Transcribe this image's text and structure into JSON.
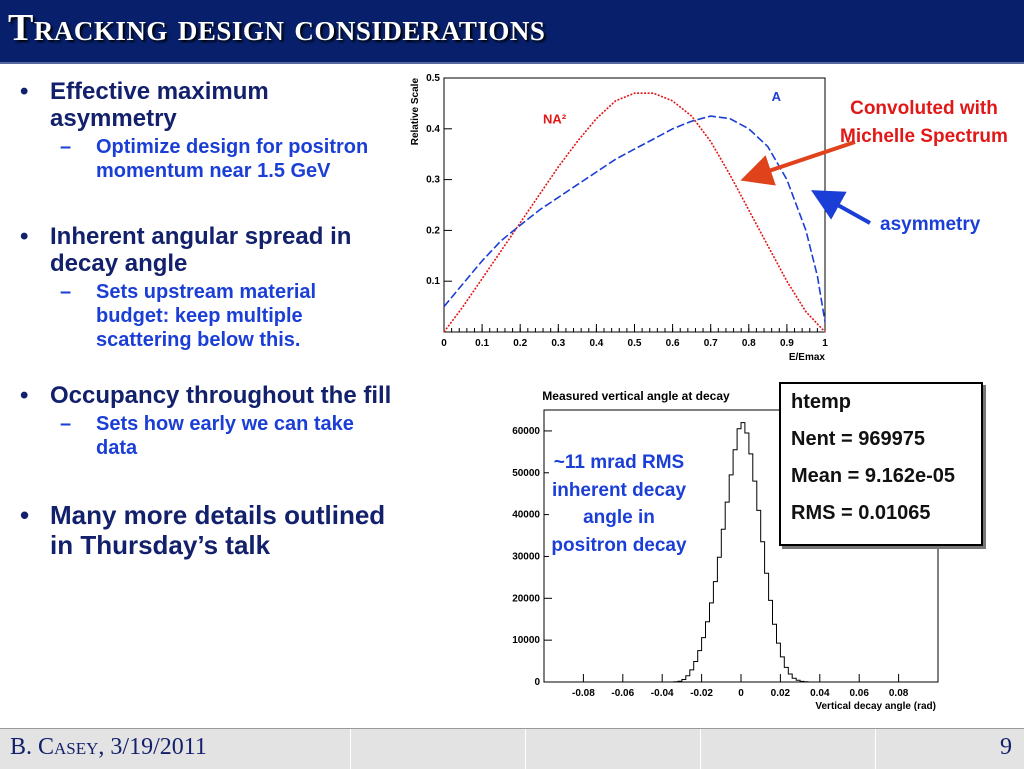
{
  "slide": {
    "title": "Tracking design considerations",
    "bullets": [
      {
        "text": "Effective maximum asymmetry",
        "sub": "Optimize design for positron momentum near 1.5 GeV"
      },
      {
        "text": "Inherent angular spread in decay angle",
        "sub": "Sets upstream material budget:  keep multiple scattering below this."
      },
      {
        "text": "Occupancy throughout the fill",
        "sub": "Sets how early we can take data"
      },
      {
        "text": "Many more details outlined in Thursday’s talk",
        "sub": ""
      }
    ],
    "bullet_symbol": "•",
    "sub_symbol": "–",
    "annotations": {
      "convoluted": "Convoluted with Michelle Spectrum",
      "asymmetry": "asymmetry",
      "rms_note": "~11 mrad RMS inherent decay angle in positron decay"
    },
    "footer": {
      "author": "B. Casey, 3/19/2011",
      "page": "9"
    },
    "colors": {
      "title_bg": "#08206b",
      "bullet_text": "#13206b",
      "sub_text": "#1b3fd6",
      "curve_na2": "#e01818",
      "curve_a": "#1b3fd6",
      "arrow_red": "#e0431b"
    }
  },
  "chart_data": [
    {
      "type": "line",
      "title": "",
      "xlabel": "E/Emax",
      "ylabel": "Relative Scale",
      "xlim": [
        0,
        1
      ],
      "ylim": [
        0,
        0.5
      ],
      "xticks": [
        "0",
        "0.1",
        "0.2",
        "0.3",
        "0.4",
        "0.5",
        "0.6",
        "0.7",
        "0.8",
        "0.9",
        "1"
      ],
      "yticks": [
        "0.1",
        "0.2",
        "0.3",
        "0.4",
        "0.5"
      ],
      "series": [
        {
          "name": "NA²",
          "color": "#e01818",
          "x": [
            0,
            0.05,
            0.1,
            0.15,
            0.2,
            0.25,
            0.3,
            0.35,
            0.4,
            0.45,
            0.5,
            0.55,
            0.6,
            0.65,
            0.7,
            0.75,
            0.8,
            0.85,
            0.9,
            0.95,
            1.0
          ],
          "y": [
            0,
            0.05,
            0.105,
            0.16,
            0.215,
            0.27,
            0.325,
            0.375,
            0.42,
            0.455,
            0.47,
            0.47,
            0.455,
            0.425,
            0.375,
            0.31,
            0.24,
            0.17,
            0.1,
            0.04,
            0
          ]
        },
        {
          "name": "A",
          "color": "#1b3fd6",
          "x": [
            0,
            0.05,
            0.1,
            0.15,
            0.2,
            0.25,
            0.3,
            0.35,
            0.4,
            0.45,
            0.5,
            0.55,
            0.6,
            0.65,
            0.7,
            0.75,
            0.8,
            0.85,
            0.9,
            0.95,
            0.98,
            1.0
          ],
          "y": [
            0.05,
            0.095,
            0.14,
            0.18,
            0.21,
            0.24,
            0.265,
            0.29,
            0.315,
            0.34,
            0.36,
            0.38,
            0.4,
            0.415,
            0.425,
            0.42,
            0.4,
            0.365,
            0.3,
            0.2,
            0.11,
            0.02
          ]
        }
      ]
    },
    {
      "type": "bar",
      "title": "Measured vertical angle at decay",
      "xlabel": "Vertical decay angle (rad)",
      "ylabel": "",
      "xlim": [
        -0.1,
        0.1
      ],
      "ylim": [
        0,
        65000
      ],
      "xticks": [
        "-0.08",
        "-0.06",
        "-0.04",
        "-0.02",
        "0",
        "0.02",
        "0.04",
        "0.06",
        "0.08"
      ],
      "yticks": [
        "0",
        "10000",
        "20000",
        "30000",
        "40000",
        "50000",
        "60000"
      ],
      "stats": {
        "name": "htemp",
        "nent_label": "Nent = 969975",
        "mean_label": "Mean  = 9.162e-05",
        "rms_label": "RMS   = 0.01065"
      },
      "bin_width": 0.002,
      "bin_centers": [
        -0.033,
        -0.031,
        -0.029,
        -0.027,
        -0.025,
        -0.023,
        -0.021,
        -0.019,
        -0.017,
        -0.015,
        -0.013,
        -0.011,
        -0.009,
        -0.007,
        -0.005,
        -0.003,
        -0.001,
        0.001,
        0.003,
        0.005,
        0.007,
        0.009,
        0.011,
        0.013,
        0.015,
        0.017,
        0.019,
        0.021,
        0.023,
        0.025,
        0.027,
        0.029,
        0.031,
        0.033
      ],
      "values": [
        40,
        190,
        600,
        1500,
        2900,
        4900,
        7500,
        10600,
        14400,
        18900,
        24000,
        29800,
        36500,
        43000,
        49500,
        55500,
        60500,
        62000,
        59500,
        54500,
        48000,
        41000,
        33500,
        26000,
        19500,
        13800,
        9300,
        6000,
        3500,
        1900,
        900,
        400,
        150,
        40
      ]
    }
  ]
}
